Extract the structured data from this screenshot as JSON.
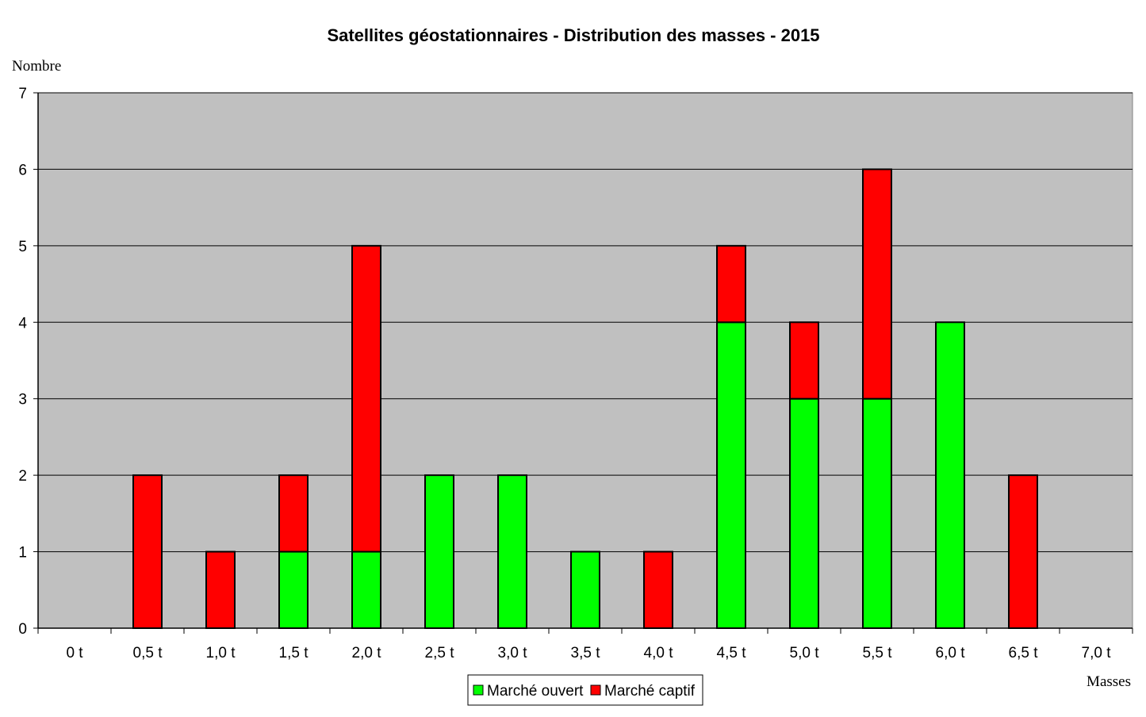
{
  "chart_data": {
    "type": "bar",
    "stacked": true,
    "title": "Satellites géostationnaires - Distribution des masses - 2015",
    "ylabel": "Nombre",
    "xlabel": "Masses",
    "categories": [
      "0 t",
      "0,5 t",
      "1,0 t",
      "1,5 t",
      "2,0 t",
      "2,5 t",
      "3,0 t",
      "3,5 t",
      "4,0 t",
      "4,5 t",
      "5,0 t",
      "5,5 t",
      "6,0 t",
      "6,5 t",
      "7,0 t"
    ],
    "series": [
      {
        "name": "Marché ouvert",
        "color": "#00ff00",
        "values": [
          0,
          0,
          0,
          1,
          1,
          2,
          2,
          1,
          0,
          4,
          3,
          3,
          4,
          0,
          0
        ]
      },
      {
        "name": "Marché captif",
        "color": "#ff0000",
        "values": [
          0,
          2,
          1,
          1,
          4,
          0,
          0,
          0,
          1,
          1,
          1,
          3,
          0,
          2,
          0
        ]
      }
    ],
    "ylim": [
      0,
      7
    ],
    "yticks": [
      "0",
      "1",
      "2",
      "3",
      "4",
      "5",
      "6",
      "7"
    ],
    "grid": true,
    "plot_background": "#c0c0c0",
    "legend_position": "bottom"
  }
}
